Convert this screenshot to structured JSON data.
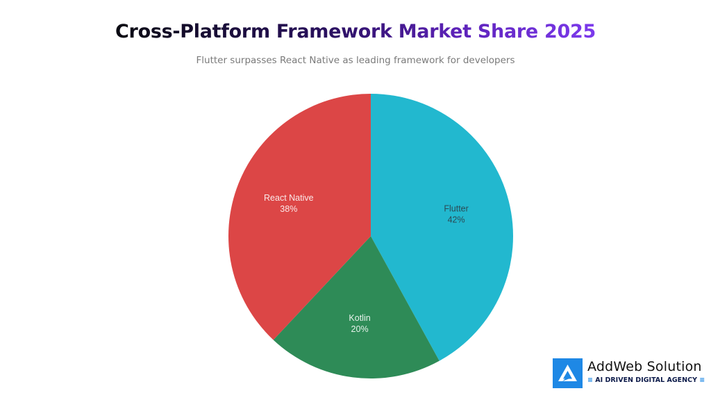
{
  "header": {
    "title": "Cross-Platform Framework Market Share 2025",
    "subtitle": "Flutter surpasses React Native as leading framework for developers"
  },
  "chart_data": {
    "type": "pie",
    "title": "Cross-Platform Framework Market Share 2025",
    "subtitle": "Flutter surpasses React Native as leading framework for developers",
    "categories": [
      "Flutter",
      "Kotlin",
      "React Native"
    ],
    "values": [
      42,
      20,
      38
    ],
    "unit": "%",
    "colors": [
      "#22b8cf",
      "#2e8b57",
      "#dc4646"
    ],
    "start_angle": "12 o'clock",
    "direction": "clockwise",
    "labels": [
      {
        "name": "Flutter",
        "value_label": "42%"
      },
      {
        "name": "Kotlin",
        "value_label": "20%"
      },
      {
        "name": "React Native",
        "value_label": "38%"
      }
    ],
    "legend": "none (inline labels)"
  },
  "branding": {
    "name": "AddWeb Solution",
    "tagline": "AI DRIVEN DIGITAL AGENCY",
    "icon": "addweb-logo-icon",
    "color": "#1e88e5"
  }
}
